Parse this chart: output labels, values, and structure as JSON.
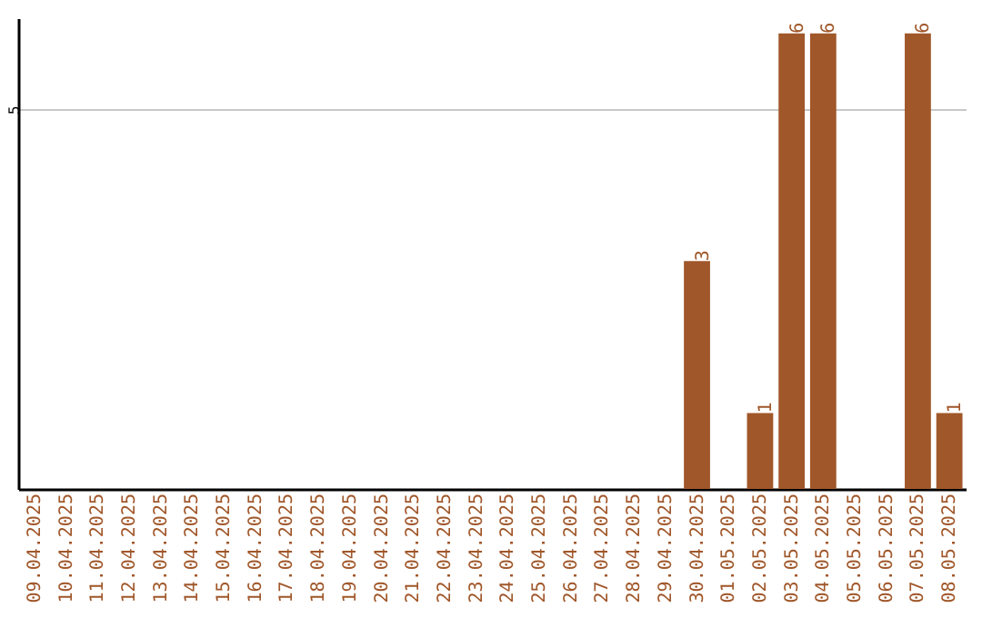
{
  "chart_data": {
    "type": "bar",
    "categories": [
      "09.04.2025",
      "10.04.2025",
      "11.04.2025",
      "12.04.2025",
      "13.04.2025",
      "14.04.2025",
      "15.04.2025",
      "16.04.2025",
      "17.04.2025",
      "18.04.2025",
      "19.04.2025",
      "20.04.2025",
      "21.04.2025",
      "22.04.2025",
      "23.04.2025",
      "24.04.2025",
      "25.04.2025",
      "26.04.2025",
      "27.04.2025",
      "28.04.2025",
      "29.04.2025",
      "30.04.2025",
      "01.05.2025",
      "02.05.2025",
      "03.05.2025",
      "04.05.2025",
      "05.05.2025",
      "06.05.2025",
      "07.05.2025",
      "08.05.2025"
    ],
    "values": [
      null,
      null,
      null,
      null,
      null,
      null,
      null,
      null,
      null,
      null,
      null,
      null,
      null,
      null,
      null,
      null,
      null,
      null,
      null,
      null,
      null,
      3,
      null,
      1,
      6,
      6,
      null,
      null,
      6,
      1
    ],
    "color": "#a0572a",
    "ylim": [
      0,
      6.2
    ],
    "yticks": [
      5
    ],
    "grid": "y",
    "data_labels": true
  }
}
